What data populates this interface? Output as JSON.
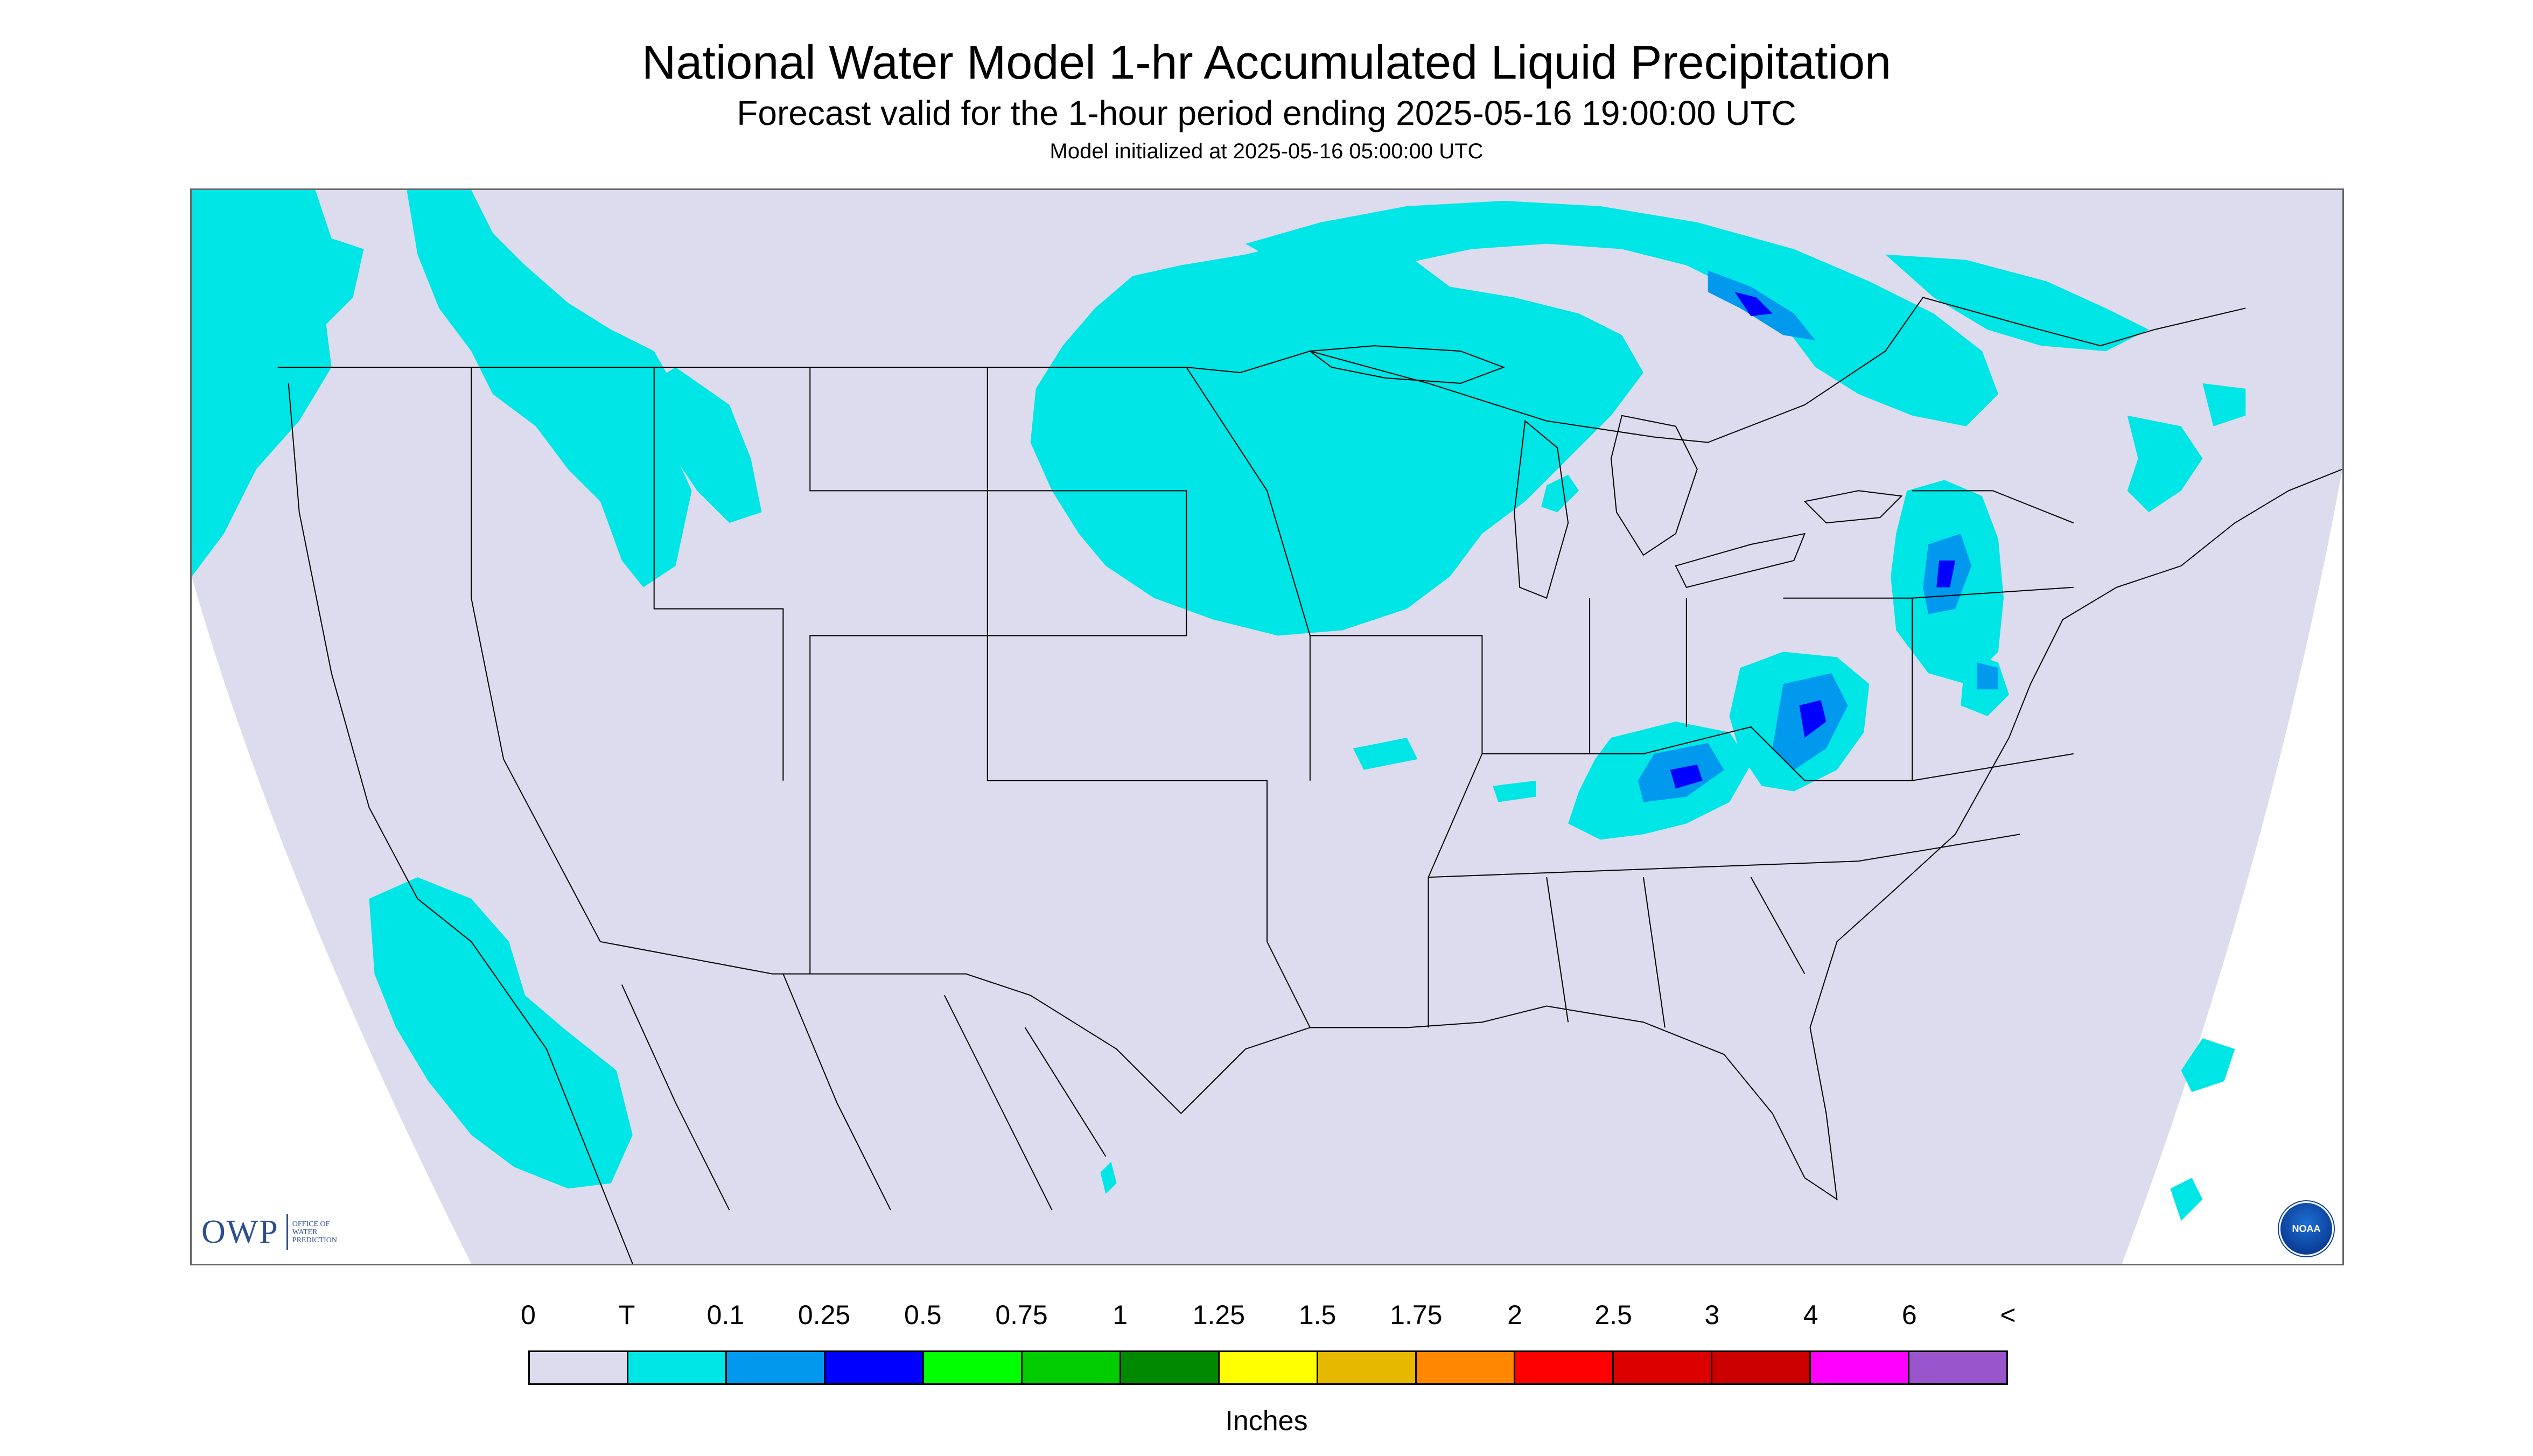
{
  "title": "National Water Model 1-hr Accumulated Liquid Precipitation",
  "subtitle": "Forecast valid for the 1-hour period ending 2025-05-16 19:00:00 UTC",
  "init_line": "Model initialized at 2025-05-16 05:00:00 UTC",
  "map": {
    "background_color": "#ffffff",
    "domain_color": "#dcdcee",
    "precip_color_trace": "#00e5e5",
    "precip_color_light": "#0099ee",
    "precip_color_mod": "#0000ff",
    "line_color": "#000000"
  },
  "legend": {
    "labels": [
      "0",
      "T",
      "0.1",
      "0.25",
      "0.5",
      "0.75",
      "1",
      "1.25",
      "1.5",
      "1.75",
      "2",
      "2.5",
      "3",
      "4",
      "6",
      "<"
    ],
    "colors": [
      "#dcdcee",
      "#00e5e5",
      "#0099ee",
      "#0000ff",
      "#00ff00",
      "#00cc00",
      "#008800",
      "#ffff00",
      "#e6b800",
      "#ff8800",
      "#ff0000",
      "#dd0000",
      "#cc0000",
      "#ff00ff",
      "#9955cc"
    ],
    "units": "Inches"
  },
  "owp_logo": {
    "mark": "OWP",
    "line1": "Office of",
    "line2": "Water",
    "line3": "Prediction"
  },
  "noaa_logo": {
    "text": "NOAA"
  }
}
